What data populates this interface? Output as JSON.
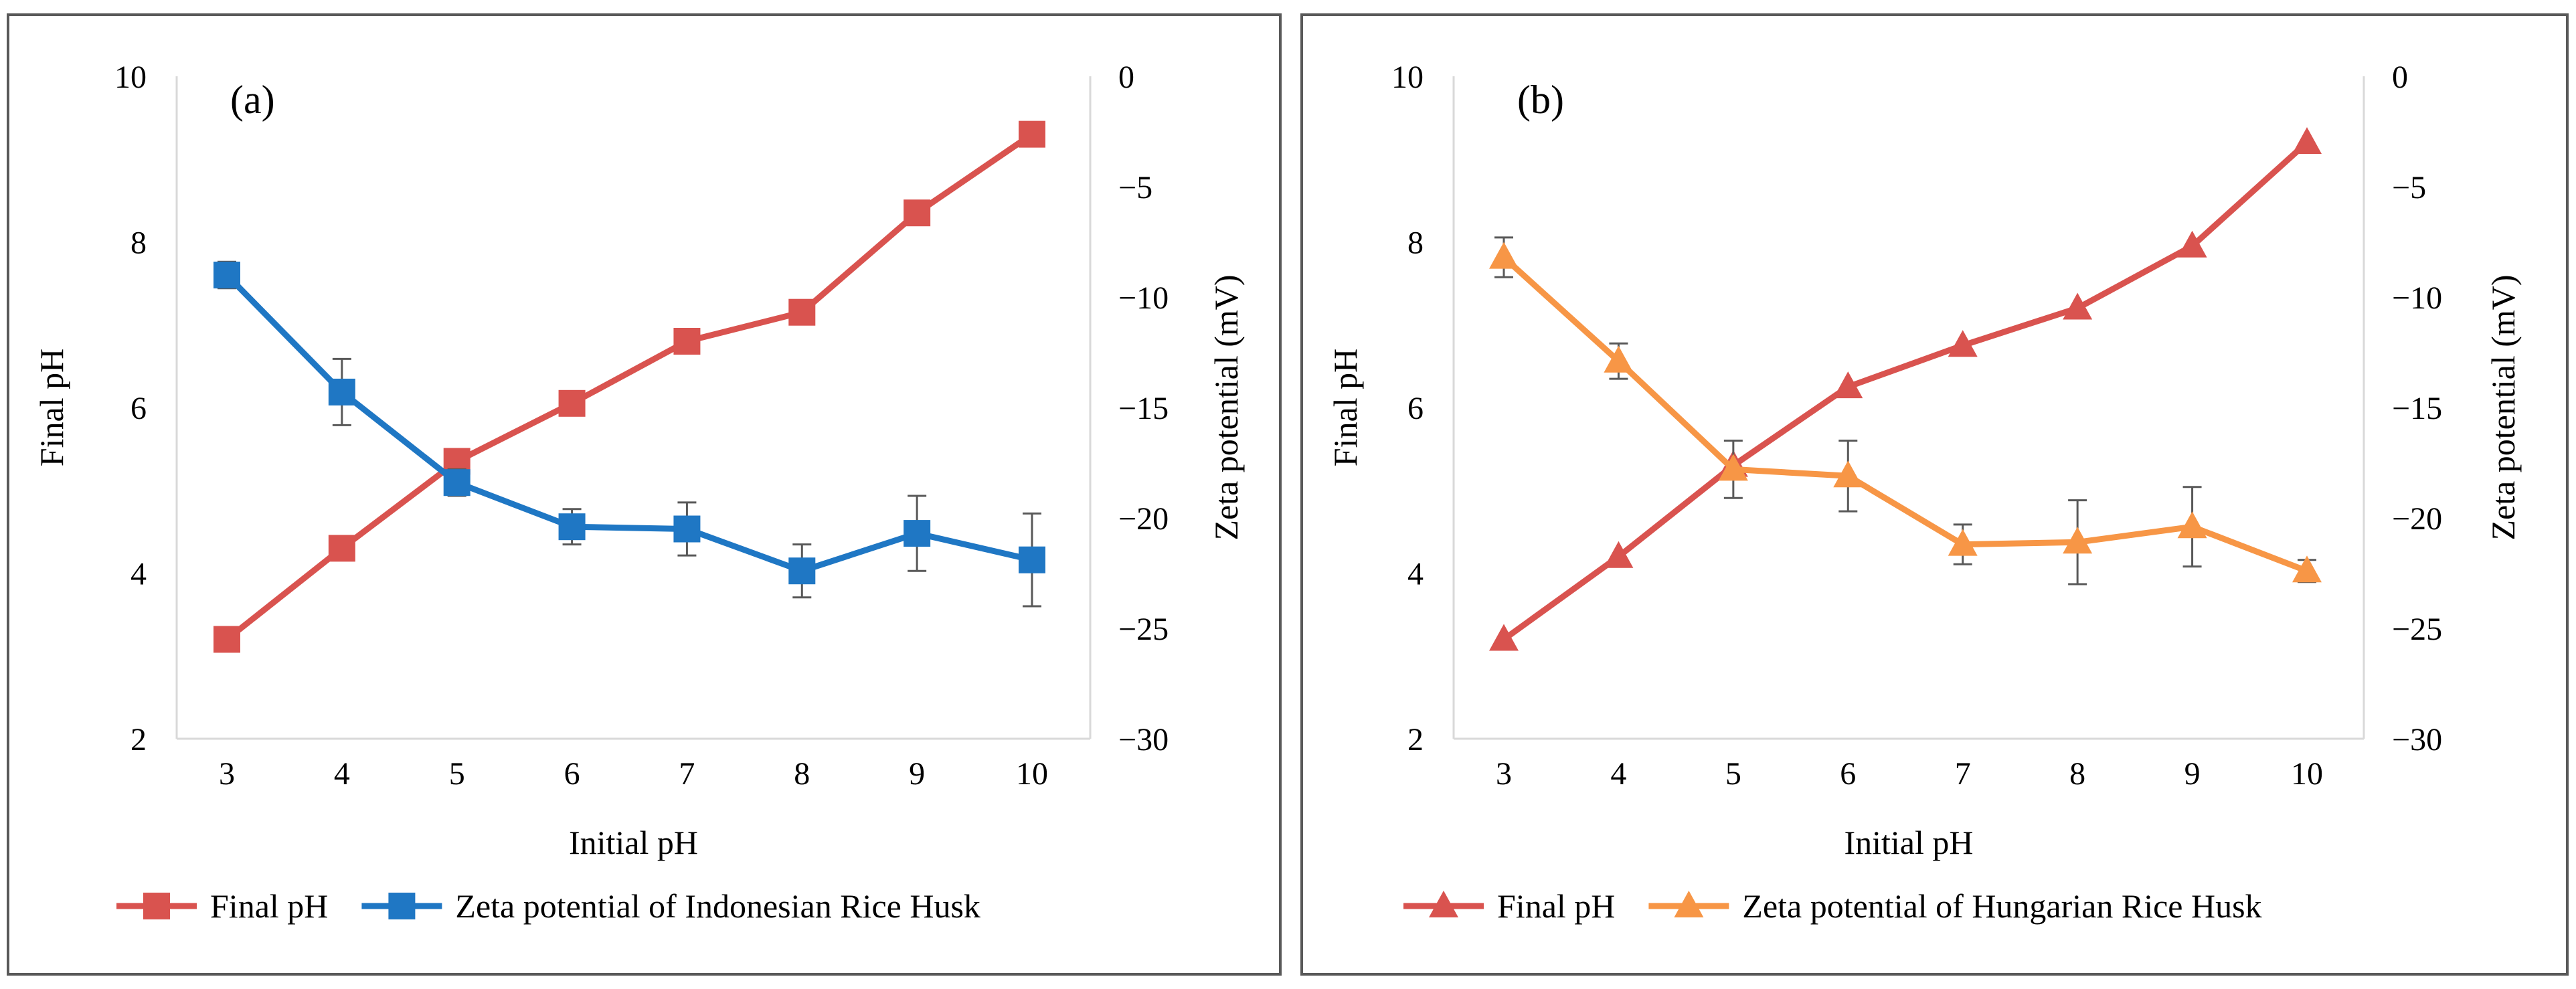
{
  "chart_data": [
    {
      "type": "line",
      "panel_label": "(a)",
      "xlabel": "Initial pH",
      "ylabel": "Final pH",
      "y2label": "Zeta potential (mV)",
      "x": [
        3,
        4,
        5,
        6,
        7,
        8,
        9,
        10
      ],
      "xticks": [
        "3",
        "4",
        "5",
        "6",
        "7",
        "8",
        "9",
        "10"
      ],
      "ylim": [
        2,
        10
      ],
      "yticks": [
        "2",
        "4",
        "6",
        "8",
        "10"
      ],
      "y2lim": [
        -30,
        0
      ],
      "y2ticks": [
        "−30",
        "−25",
        "−20",
        "−15",
        "−10",
        "−5",
        "0"
      ],
      "legend_position": "bottom",
      "series": [
        {
          "name": "Final pH",
          "axis": "left",
          "marker": "square",
          "color": "#d9534f",
          "values": [
            3.2,
            4.3,
            5.35,
            6.05,
            6.8,
            7.15,
            8.35,
            9.3
          ]
        },
        {
          "name": "Zeta potential of Indonesian Rice Husk",
          "axis": "right",
          "marker": "square",
          "color": "#1f77c4",
          "values": [
            -9.0,
            -14.3,
            -18.4,
            -20.4,
            -20.5,
            -22.4,
            -20.7,
            -21.9
          ],
          "errors": [
            0.6,
            1.5,
            0.6,
            0.8,
            1.2,
            1.2,
            1.7,
            2.1
          ]
        }
      ]
    },
    {
      "type": "line",
      "panel_label": "(b)",
      "xlabel": "Initial pH",
      "ylabel": "Final pH",
      "y2label": "Zeta potential (mV)",
      "x": [
        3,
        4,
        5,
        6,
        7,
        8,
        9,
        10
      ],
      "xticks": [
        "3",
        "4",
        "5",
        "6",
        "7",
        "8",
        "9",
        "10"
      ],
      "ylim": [
        2,
        10
      ],
      "yticks": [
        "2",
        "4",
        "6",
        "8",
        "10"
      ],
      "y2lim": [
        -30,
        0
      ],
      "y2ticks": [
        "−30",
        "−25",
        "−20",
        "−15",
        "−10",
        "−5",
        "0"
      ],
      "legend_position": "bottom",
      "series": [
        {
          "name": "Final pH",
          "axis": "left",
          "marker": "triangle",
          "color": "#d9534f",
          "values": [
            3.2,
            4.2,
            5.3,
            6.25,
            6.75,
            7.2,
            7.95,
            9.2
          ]
        },
        {
          "name": "Zeta potential of Hungarian Rice Husk",
          "axis": "right",
          "marker": "triangle",
          "color": "#f79646",
          "values": [
            -8.2,
            -12.9,
            -17.8,
            -18.1,
            -21.2,
            -21.1,
            -20.4,
            -22.4
          ],
          "errors": [
            0.9,
            0.8,
            1.3,
            1.6,
            0.9,
            1.9,
            1.8,
            0.5
          ]
        }
      ]
    }
  ]
}
